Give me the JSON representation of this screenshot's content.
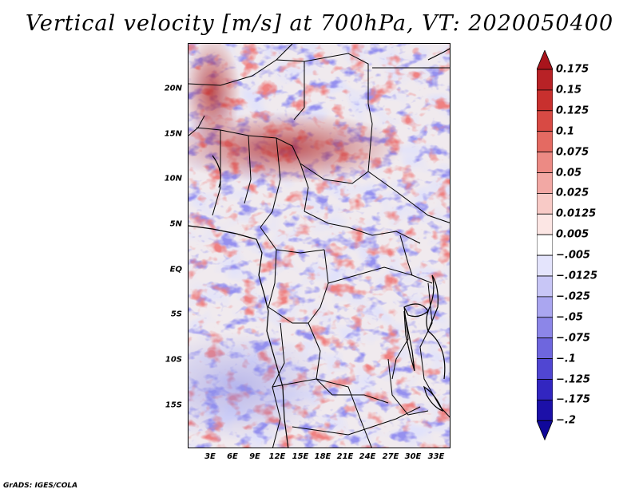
{
  "title": "Vertical velocity [m/s] at 700hPa, VT: 2020050400",
  "credit": "GrADS: IGES/COLA",
  "map": {
    "lat_ticks": [
      "20N",
      "15N",
      "10N",
      "5N",
      "EQ",
      "5S",
      "10S",
      "15S"
    ],
    "lon_ticks": [
      "3E",
      "6E",
      "9E",
      "12E",
      "15E",
      "18E",
      "21E",
      "24E",
      "27E",
      "30E",
      "33E"
    ],
    "lat_range": [
      -20,
      24.5
    ],
    "lon_range": [
      0.5,
      35.5
    ]
  },
  "colorbar": {
    "labels": [
      "0.175",
      "0.15",
      "0.125",
      "0.1",
      "0.075",
      "0.05",
      "0.025",
      "0.0125",
      "0.005",
      "−.005",
      "−.0125",
      "−.025",
      "−.05",
      "−.075",
      "−.1",
      "−.125",
      "−.175",
      "−.2"
    ],
    "colors": [
      "#a8141c",
      "#b82226",
      "#c8302e",
      "#d84a44",
      "#e46a62",
      "#ec8a84",
      "#f2a8a4",
      "#f8cac6",
      "#fce6e4",
      "#ffffff",
      "#e4e4fc",
      "#c8c6f6",
      "#aaa6f0",
      "#8c86e8",
      "#6e66de",
      "#5046d2",
      "#3226c0",
      "#1c10a8",
      "#10089a"
    ]
  }
}
